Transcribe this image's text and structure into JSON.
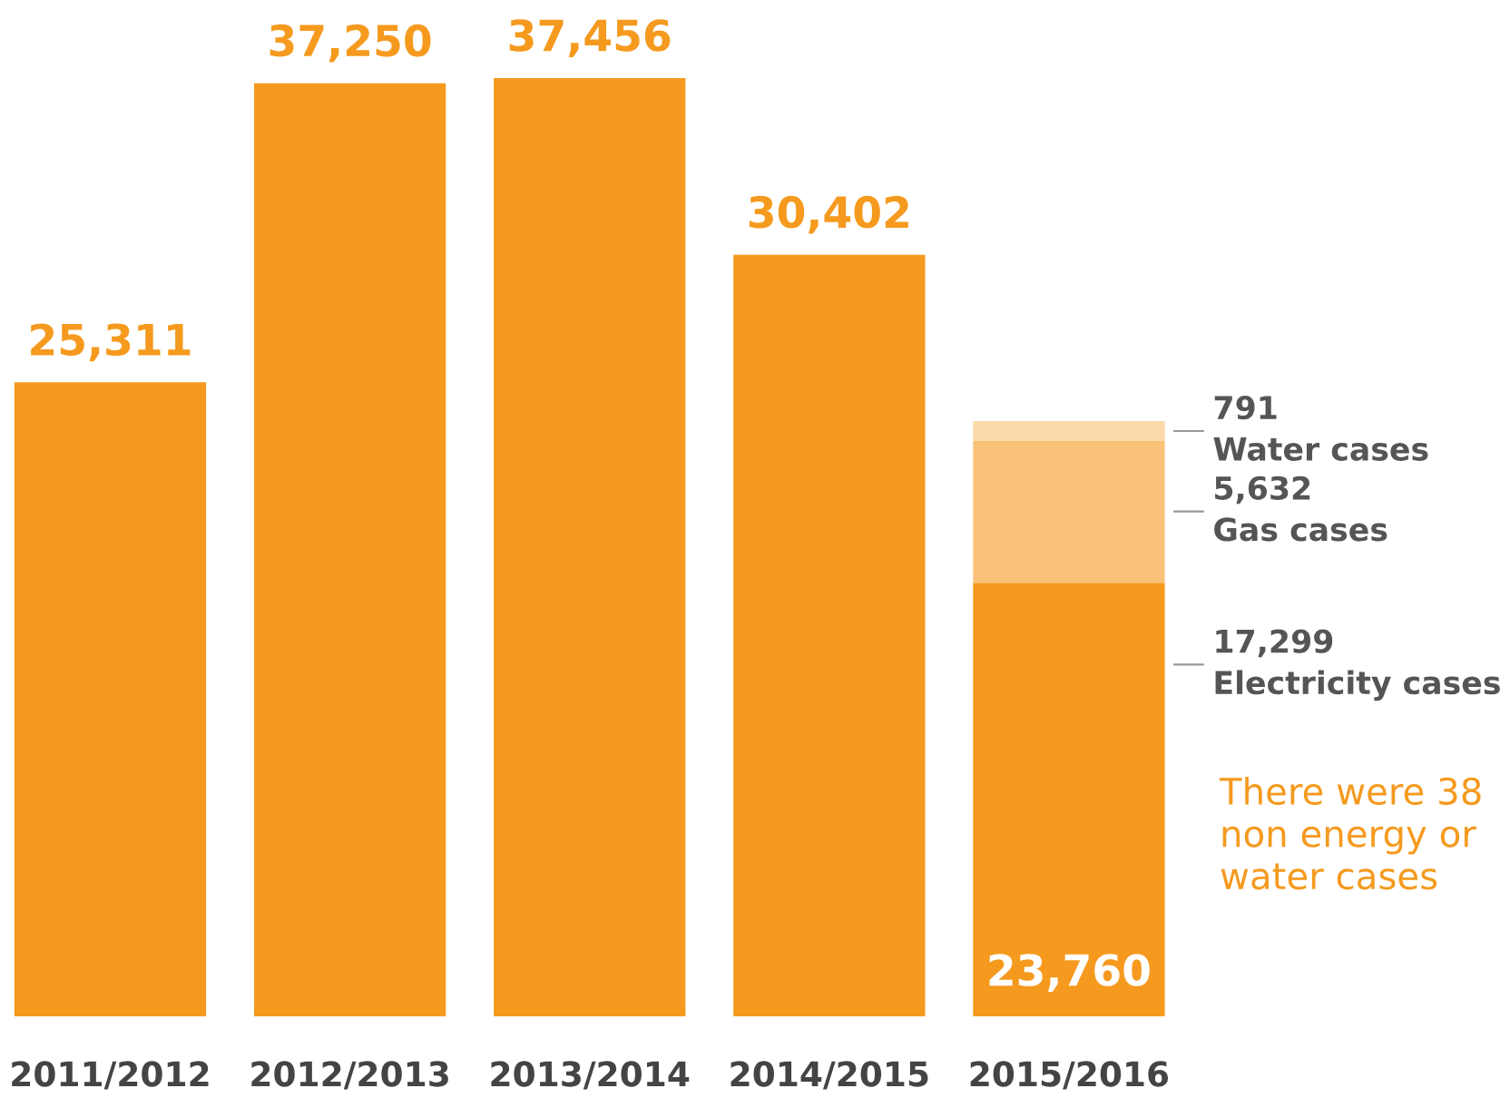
{
  "chart_data": {
    "type": "bar",
    "stacked": true,
    "categories": [
      "2011/2012",
      "2012/2013",
      "2013/2014",
      "2014/2015",
      "2015/2016"
    ],
    "series": [
      {
        "name": "Electricity cases",
        "color": "#f59a1e",
        "values": [
          25311,
          37250,
          37456,
          30402,
          17299
        ],
        "value_labels": [
          null,
          null,
          null,
          null,
          "17,299"
        ]
      },
      {
        "color": "#f59a1e",
        "values": [
          null,
          null,
          null,
          null,
          38
        ]
      },
      {
        "name": "Gas cases",
        "color": "#f9c278",
        "values": [
          null,
          null,
          null,
          null,
          5632
        ],
        "value_labels": [
          null,
          null,
          null,
          null,
          "5,632"
        ]
      },
      {
        "name": "Water cases",
        "color": "#fbd9ab",
        "values": [
          null,
          null,
          null,
          null,
          791
        ],
        "value_labels": [
          null,
          null,
          null,
          null,
          "791"
        ]
      }
    ],
    "totals": [
      "25,311",
      "37,250",
      "37,456",
      "30,402",
      "23,760"
    ],
    "annotations": [
      "There were 38\nnon energy or\nwater cases"
    ],
    "legend": false,
    "grid": false
  }
}
